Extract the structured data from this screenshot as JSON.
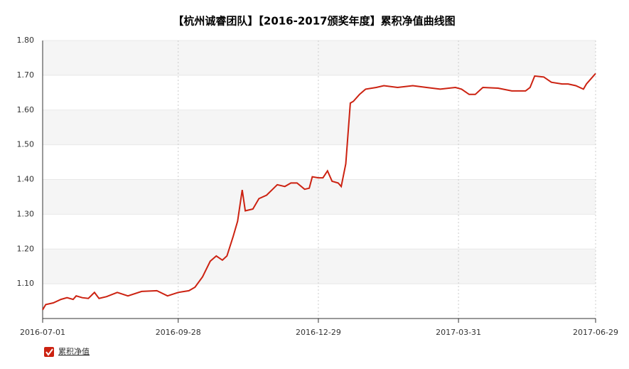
{
  "chart_data": {
    "type": "line",
    "title": "【杭州诚睿团队】【2016-2017颁奖年度】累积净值曲线图",
    "x": [
      "2016-07-01",
      "2016-07-03",
      "2016-07-08",
      "2016-07-13",
      "2016-07-17",
      "2016-07-21",
      "2016-07-23",
      "2016-07-27",
      "2016-07-31",
      "2016-08-04",
      "2016-08-07",
      "2016-08-12",
      "2016-08-19",
      "2016-08-26",
      "2016-09-04",
      "2016-09-14",
      "2016-09-21",
      "2016-09-28",
      "2016-10-05",
      "2016-10-09",
      "2016-10-14",
      "2016-10-19",
      "2016-10-23",
      "2016-10-27",
      "2016-10-30",
      "2016-11-03",
      "2016-11-06",
      "2016-11-09",
      "2016-11-11",
      "2016-11-16",
      "2016-11-20",
      "2016-11-25",
      "2016-12-02",
      "2016-12-07",
      "2016-12-11",
      "2016-12-15",
      "2016-12-20",
      "2016-12-23",
      "2016-12-25",
      "2016-12-29",
      "2017-01-01",
      "2017-01-04",
      "2017-01-07",
      "2017-01-11",
      "2017-01-13",
      "2017-01-16",
      "2017-01-19",
      "2017-01-21",
      "2017-01-25",
      "2017-01-29",
      "2017-02-05",
      "2017-02-10",
      "2017-02-19",
      "2017-03-01",
      "2017-03-10",
      "2017-03-19",
      "2017-03-29",
      "2017-04-02",
      "2017-04-07",
      "2017-04-11",
      "2017-04-16",
      "2017-04-26",
      "2017-05-05",
      "2017-05-14",
      "2017-05-17",
      "2017-05-20",
      "2017-05-26",
      "2017-05-31",
      "2017-06-07",
      "2017-06-11",
      "2017-06-16",
      "2017-06-21",
      "2017-06-23",
      "2017-06-25",
      "2017-06-29"
    ],
    "series": [
      {
        "name": "累积净值",
        "color": "#cc2211",
        "values": [
          1.025,
          1.04,
          1.045,
          1.055,
          1.06,
          1.055,
          1.065,
          1.06,
          1.058,
          1.075,
          1.058,
          1.063,
          1.075,
          1.065,
          1.078,
          1.08,
          1.065,
          1.075,
          1.08,
          1.09,
          1.12,
          1.165,
          1.18,
          1.168,
          1.18,
          1.235,
          1.28,
          1.37,
          1.31,
          1.315,
          1.345,
          1.355,
          1.385,
          1.38,
          1.39,
          1.39,
          1.372,
          1.375,
          1.408,
          1.405,
          1.405,
          1.425,
          1.395,
          1.39,
          1.38,
          1.445,
          1.62,
          1.625,
          1.645,
          1.66,
          1.665,
          1.67,
          1.665,
          1.67,
          1.665,
          1.66,
          1.665,
          1.66,
          1.645,
          1.645,
          1.665,
          1.663,
          1.655,
          1.655,
          1.665,
          1.698,
          1.695,
          1.68,
          1.675,
          1.675,
          1.67,
          1.66,
          1.675,
          1.685,
          1.705
        ]
      }
    ],
    "xlim": [
      "2016-07-01",
      "2017-06-29"
    ],
    "xticks": [
      "2016-07-01",
      "2016-09-28",
      "2016-12-29",
      "2017-03-31",
      "2017-06-29"
    ],
    "ylim": [
      1.0,
      1.8
    ],
    "yticks": [
      {
        "value": 1.1,
        "label": "1.10"
      },
      {
        "value": 1.2,
        "label": "1.20"
      },
      {
        "value": 1.3,
        "label": "1.30"
      },
      {
        "value": 1.4,
        "label": "1.40"
      },
      {
        "value": 1.5,
        "label": "1.50"
      },
      {
        "value": 1.6,
        "label": "1.60"
      },
      {
        "value": 1.7,
        "label": "1.70"
      },
      {
        "value": 1.8,
        "label": "1.80"
      }
    ]
  }
}
